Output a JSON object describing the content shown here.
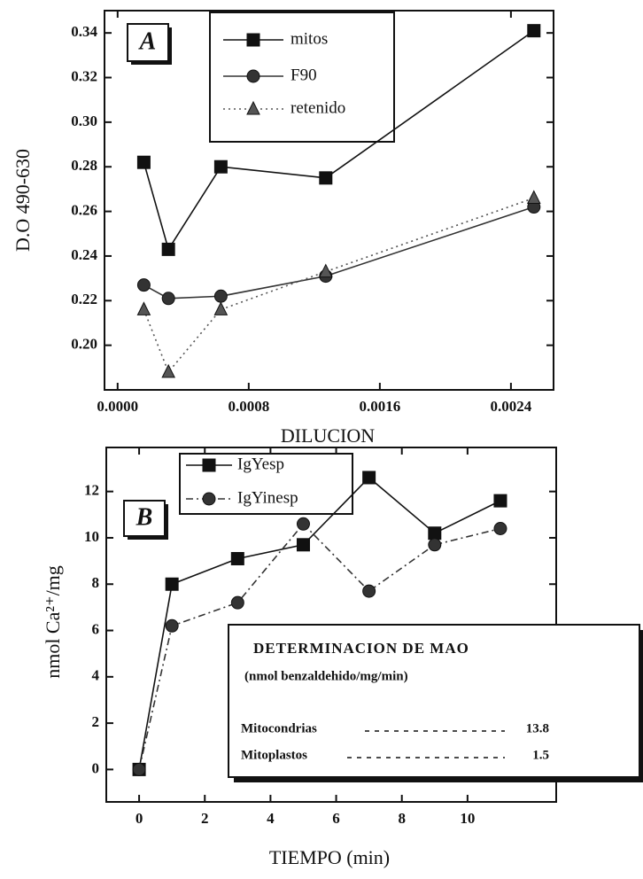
{
  "chart_data": [
    {
      "type": "line",
      "panel_label": "A",
      "x_label": "DILUCION",
      "y_label": "D.O 490-630",
      "x": [
        0.00016,
        0.00031,
        0.00063,
        0.00127,
        0.00254
      ],
      "xlim": [
        -8e-05,
        0.00266
      ],
      "xticks": [
        {
          "value": 0,
          "label": "0.0000"
        },
        0.0008,
        0.0016,
        0.0024
      ],
      "ylim": [
        0.18,
        0.35
      ],
      "yticks": [
        {
          "value": 0.2,
          "label": "0.20"
        },
        0.22,
        0.24,
        0.26,
        0.28,
        {
          "value": 0.3,
          "label": "0.30"
        },
        0.32,
        0.34
      ],
      "series": [
        {
          "name": "mitos",
          "color": "#111",
          "marker": "square",
          "dash": "solid",
          "values": [
            0.282,
            0.243,
            0.28,
            0.275,
            0.341
          ]
        },
        {
          "name": "F90",
          "color": "#333",
          "marker": "circle",
          "dash": "solid",
          "values": [
            0.227,
            0.221,
            0.222,
            0.231,
            0.262
          ]
        },
        {
          "name": "retenido",
          "color": "#555",
          "marker": "triangle",
          "dash": "dotted",
          "values": [
            0.216,
            0.188,
            0.216,
            0.233,
            0.266
          ]
        }
      ]
    },
    {
      "type": "line",
      "panel_label": "B",
      "x_label": "TIEMPO (min)",
      "y_label": "nmol Ca²⁺/mg",
      "x": [
        0,
        1,
        3,
        5,
        7,
        9,
        11
      ],
      "xlim": [
        -1,
        12.7
      ],
      "xticks": [
        0,
        2,
        4,
        6,
        8,
        10
      ],
      "ylim": [
        -1.4,
        13.9
      ],
      "yticks": [
        0,
        2,
        4,
        6,
        8,
        10,
        12
      ],
      "series": [
        {
          "name": "IgYesp",
          "color": "#111",
          "marker": "square",
          "dash": "solid",
          "values": [
            0,
            8.0,
            9.1,
            9.7,
            12.6,
            10.2,
            11.6
          ]
        },
        {
          "name": "IgYinesp",
          "color": "#333",
          "marker": "circle",
          "dash": "dashdot",
          "values": [
            0,
            6.2,
            7.2,
            10.6,
            7.7,
            9.7,
            10.4
          ]
        }
      ],
      "inset": {
        "title": "DETERMINACION DE MAO",
        "subtitle": "(nmol benzaldehido/mg/min)",
        "rows": [
          {
            "label": "Mitocondrias",
            "value": 13.8
          },
          {
            "label": "Mitoplastos",
            "value": 1.5
          }
        ]
      }
    }
  ]
}
